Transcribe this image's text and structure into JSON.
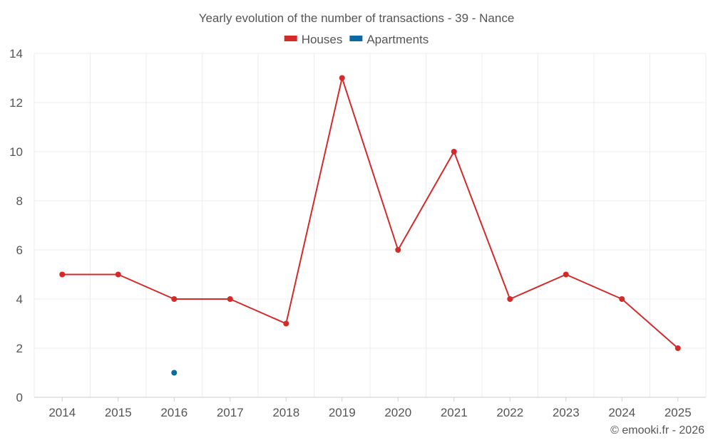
{
  "chart_data": {
    "type": "line",
    "title": "Yearly evolution of the number of transactions - 39 - Nance",
    "categories": [
      "2014",
      "2015",
      "2016",
      "2017",
      "2018",
      "2019",
      "2020",
      "2021",
      "2022",
      "2023",
      "2024",
      "2025"
    ],
    "ylim": [
      0,
      14
    ],
    "yticks": [
      0,
      2,
      4,
      6,
      8,
      10,
      12,
      14
    ],
    "grid": true,
    "legend_position": "top-center",
    "series": [
      {
        "name": "Houses",
        "color": "#d32a2a",
        "values": [
          5,
          5,
          4,
          4,
          3,
          13,
          6,
          10,
          4,
          5,
          4,
          2
        ]
      },
      {
        "name": "Apartments",
        "color": "#0b6aa2",
        "values": [
          null,
          null,
          1,
          null,
          null,
          null,
          null,
          null,
          null,
          null,
          null,
          null
        ]
      }
    ],
    "credit": "© emooki.fr - 2026"
  }
}
